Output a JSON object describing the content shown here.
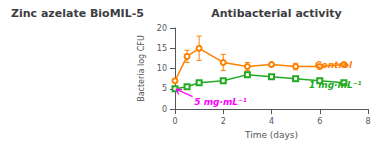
{
  "chart_data": {
    "type": "line",
    "title": "Antibacterial activity",
    "subtitle": "Zinc azelate BioMIL-5",
    "xlabel": "Time (days)",
    "ylabel": "Bacteria log CFU",
    "xlim": [
      0,
      8
    ],
    "xticks": [
      0,
      2,
      4,
      6,
      8
    ],
    "ylim": [
      0,
      20
    ],
    "yticks": [
      0,
      5,
      10,
      15,
      20
    ],
    "grid": false,
    "x": [
      0,
      0.5,
      1,
      2,
      3,
      4,
      5,
      6,
      7
    ],
    "series": [
      {
        "color": "#FF8000",
        "marker": "circle",
        "values": [
          7.0,
          13.0,
          15.0,
          11.5,
          10.5,
          11.0,
          10.5,
          10.5,
          11.0
        ],
        "yerr": [
          0.5,
          1.5,
          3.0,
          2.0,
          1.0,
          0.5,
          0.8,
          0.5,
          0.5
        ]
      },
      {
        "color": "#22AA22",
        "marker": "square",
        "values": [
          5.0,
          5.5,
          6.5,
          7.0,
          8.5,
          8.0,
          7.5,
          7.0,
          6.5
        ],
        "yerr": [
          0.3,
          0.3,
          0.5,
          0.5,
          0.6,
          0.5,
          0.4,
          0.4,
          0.4
        ]
      }
    ],
    "annotations": [
      {
        "text": "Control",
        "x": 5.8,
        "y": 10.8,
        "color": "#FF8000"
      },
      {
        "text": "1 mg·mL⁻¹",
        "x": 5.55,
        "y": 6.0,
        "color": "#22AA22"
      },
      {
        "text": "5 mg·mL⁻¹",
        "x": 0.8,
        "y": 1.8,
        "arrow_x": 0.05,
        "arrow_y": 4.9,
        "color": "#FF00FF"
      }
    ]
  }
}
